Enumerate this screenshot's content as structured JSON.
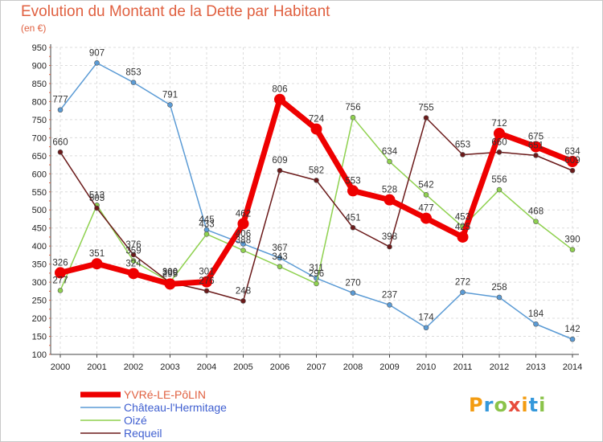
{
  "title": "Evolution du Montant de la Dette par Habitant",
  "unit_label": "(en €)",
  "logo": {
    "letters": [
      "P",
      "r",
      "o",
      "x",
      "i",
      "t",
      "i"
    ],
    "colors": [
      "#f39c12",
      "#3498db",
      "#8bc34a",
      "#e74c3c",
      "#f39c12",
      "#3498db",
      "#8bc34a"
    ]
  },
  "chart_data": {
    "type": "line",
    "x": [
      "2000",
      "2001",
      "2002",
      "2003",
      "2004",
      "2005",
      "2006",
      "2007",
      "2008",
      "2009",
      "2010",
      "2011",
      "2012",
      "2013",
      "2014"
    ],
    "yticks": [
      100,
      150,
      200,
      250,
      300,
      350,
      400,
      450,
      500,
      550,
      600,
      650,
      700,
      750,
      800,
      850,
      900,
      950
    ],
    "ylim": [
      100,
      950
    ],
    "grid": true,
    "legend_position": "bottom-left",
    "series": [
      {
        "name": "YVRé-LE-PôLIN",
        "color": "#ee0000",
        "width": 7,
        "values": [
          326,
          351,
          324,
          295,
          301,
          462,
          806,
          724,
          553,
          528,
          477,
          425,
          712,
          675,
          634
        ]
      },
      {
        "name": "Château-l'Hermitage",
        "color": "#5b9bd5",
        "width": 1.5,
        "values": [
          777,
          907,
          853,
          791,
          445,
          406,
          367,
          311,
          270,
          237,
          174,
          272,
          258,
          184,
          142
        ]
      },
      {
        "name": "Oizé",
        "color": "#8fd14f",
        "width": 1.5,
        "values": [
          277,
          513,
          359,
          300,
          433,
          388,
          343,
          296,
          756,
          634,
          542,
          453,
          556,
          468,
          390
        ]
      },
      {
        "name": "Requeil",
        "color": "#6b1a1a",
        "width": 1.5,
        "values": [
          660,
          505,
          376,
          299,
          276,
          248,
          609,
          582,
          451,
          398,
          755,
          653,
          660,
          651,
          609
        ]
      }
    ]
  }
}
